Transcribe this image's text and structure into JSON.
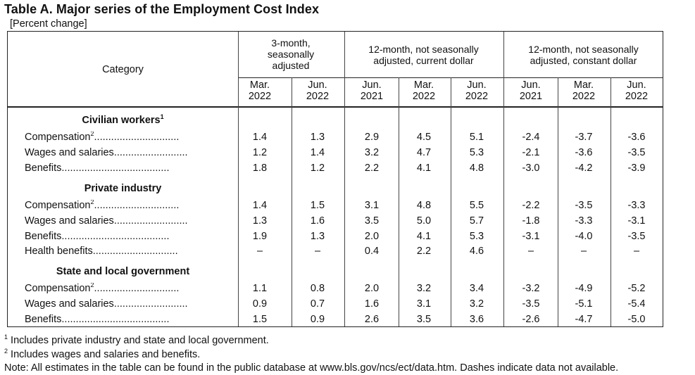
{
  "title": "Table A. Major series of the Employment Cost Index",
  "subtitle": "[Percent change]",
  "header": {
    "category": "Category",
    "groups": [
      {
        "line1": "3-month,",
        "line2": "seasonally",
        "line3": "adjusted"
      },
      {
        "line1": "12-month, not seasonally",
        "line2": "adjusted, current dollar",
        "line3": ""
      },
      {
        "line1": "12-month, not seasonally",
        "line2": "adjusted, constant dollar",
        "line3": ""
      }
    ],
    "periods": [
      {
        "m": "Mar.",
        "y": "2022"
      },
      {
        "m": "Jun.",
        "y": "2022"
      },
      {
        "m": "Jun.",
        "y": "2021"
      },
      {
        "m": "Mar.",
        "y": "2022"
      },
      {
        "m": "Jun.",
        "y": "2022"
      },
      {
        "m": "Jun.",
        "y": "2021"
      },
      {
        "m": "Mar.",
        "y": "2022"
      },
      {
        "m": "Jun.",
        "y": "2022"
      }
    ]
  },
  "sections": [
    {
      "heading": "Civilian workers",
      "heading_sup": "1",
      "rows": [
        {
          "label": "Compensation",
          "sup": "2",
          "dots": "..............................",
          "values": [
            "1.4",
            "1.3",
            "2.9",
            "4.5",
            "5.1",
            "-2.4",
            "-3.7",
            "-3.6"
          ]
        },
        {
          "label": "Wages and salaries",
          "sup": "",
          "dots": "..........................",
          "values": [
            "1.2",
            "1.4",
            "3.2",
            "4.7",
            "5.3",
            "-2.1",
            "-3.6",
            "-3.5"
          ]
        },
        {
          "label": "Benefits",
          "sup": "",
          "dots": "......................................",
          "values": [
            "1.8",
            "1.2",
            "2.2",
            "4.1",
            "4.8",
            "-3.0",
            "-4.2",
            "-3.9"
          ]
        }
      ]
    },
    {
      "heading": "Private industry",
      "heading_sup": "",
      "rows": [
        {
          "label": "Compensation",
          "sup": "2",
          "dots": "..............................",
          "values": [
            "1.4",
            "1.5",
            "3.1",
            "4.8",
            "5.5",
            "-2.2",
            "-3.5",
            "-3.3"
          ]
        },
        {
          "label": "Wages and salaries",
          "sup": "",
          "dots": "..........................",
          "values": [
            "1.3",
            "1.6",
            "3.5",
            "5.0",
            "5.7",
            "-1.8",
            "-3.3",
            "-3.1"
          ]
        },
        {
          "label": "Benefits",
          "sup": "",
          "dots": "......................................",
          "values": [
            "1.9",
            "1.3",
            "2.0",
            "4.1",
            "5.3",
            "-3.1",
            "-4.0",
            "-3.5"
          ]
        },
        {
          "label": "Health benefits",
          "sup": "",
          "dots": "..............................",
          "values": [
            "–",
            "–",
            "0.4",
            "2.2",
            "4.6",
            "–",
            "–",
            "–"
          ]
        }
      ]
    },
    {
      "heading": "State and local government",
      "heading_sup": "",
      "rows": [
        {
          "label": "Compensation",
          "sup": "2",
          "dots": "..............................",
          "values": [
            "1.1",
            "0.8",
            "2.0",
            "3.2",
            "3.4",
            "-3.2",
            "-4.9",
            "-5.2"
          ]
        },
        {
          "label": "Wages and salaries",
          "sup": "",
          "dots": "..........................",
          "values": [
            "0.9",
            "0.7",
            "1.6",
            "3.1",
            "3.2",
            "-3.5",
            "-5.1",
            "-5.4"
          ]
        },
        {
          "label": "Benefits",
          "sup": "",
          "dots": "......................................",
          "values": [
            "1.5",
            "0.9",
            "2.6",
            "3.5",
            "3.6",
            "-2.6",
            "-4.7",
            "-5.0"
          ]
        }
      ]
    }
  ],
  "footnotes": {
    "fn1_mark": "1",
    "fn1": "Includes private industry and state and local government.",
    "fn2_mark": "2",
    "fn2": "Includes wages and salaries and benefits.",
    "note": "Note: All estimates in the table can be found in the public database at www.bls.gov/ncs/ect/data.htm. Dashes indicate data not available."
  }
}
